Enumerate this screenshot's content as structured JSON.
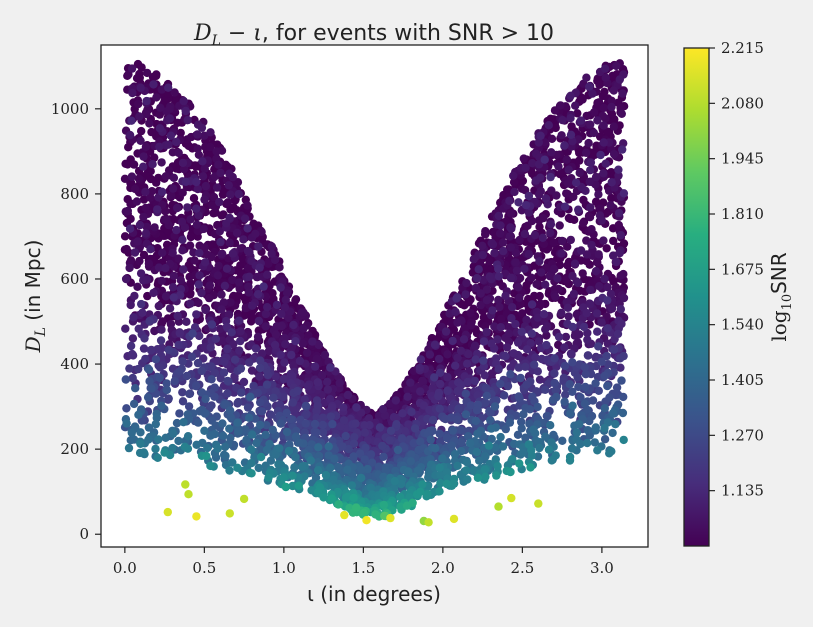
{
  "chart_data": {
    "type": "scatter",
    "title": "D_L − ι, for events with SNR > 10",
    "title_parts": {
      "lhs": "D",
      "lhs_sub": "L",
      "op": " − ι",
      "rest": ", for events with SNR > 10"
    },
    "xlabel": "ι (in degrees)",
    "ylabel": "D_L (in Mpc)",
    "ylabel_parts": {
      "main": "D",
      "sub": "L",
      "rest": " (in Mpc)"
    },
    "xlim": [
      -0.15,
      3.29
    ],
    "ylim": [
      -30,
      1150
    ],
    "x_ticks": [
      0.0,
      0.5,
      1.0,
      1.5,
      2.0,
      2.5,
      3.0
    ],
    "x_tick_labels": [
      "0.0",
      "0.5",
      "1.0",
      "1.5",
      "2.0",
      "2.5",
      "3.0"
    ],
    "y_ticks": [
      0,
      200,
      400,
      600,
      800,
      1000
    ],
    "y_tick_labels": [
      "0",
      "200",
      "400",
      "600",
      "800",
      "1000"
    ],
    "n_points": 5200,
    "x_range": [
      0.0,
      3.14
    ],
    "y_max": 1110,
    "colormap": "viridis",
    "bright_points": [
      {
        "x": 0.27,
        "y": 52
      },
      {
        "x": 0.45,
        "y": 42
      },
      {
        "x": 0.66,
        "y": 49
      },
      {
        "x": 0.75,
        "y": 83
      },
      {
        "x": 1.38,
        "y": 45
      },
      {
        "x": 1.52,
        "y": 33
      },
      {
        "x": 1.67,
        "y": 38
      },
      {
        "x": 1.88,
        "y": 31
      },
      {
        "x": 1.91,
        "y": 28
      },
      {
        "x": 2.07,
        "y": 36
      },
      {
        "x": 2.6,
        "y": 72
      },
      {
        "x": 0.38,
        "y": 117
      },
      {
        "x": 0.4,
        "y": 94
      },
      {
        "x": 2.35,
        "y": 65
      },
      {
        "x": 2.43,
        "y": 85
      }
    ],
    "colorbar": {
      "label": "log₁₀SNR",
      "label_parts": {
        "pre": "log",
        "sub": "10",
        "post": "SNR"
      },
      "min": 1.0,
      "max": 2.215,
      "ticks": [
        1.135,
        1.27,
        1.405,
        1.54,
        1.675,
        1.81,
        1.945,
        2.08,
        2.215
      ],
      "tick_labels": [
        "1.135",
        "1.270",
        "1.405",
        "1.540",
        "1.675",
        "1.810",
        "1.945",
        "2.080",
        "2.215"
      ]
    }
  }
}
